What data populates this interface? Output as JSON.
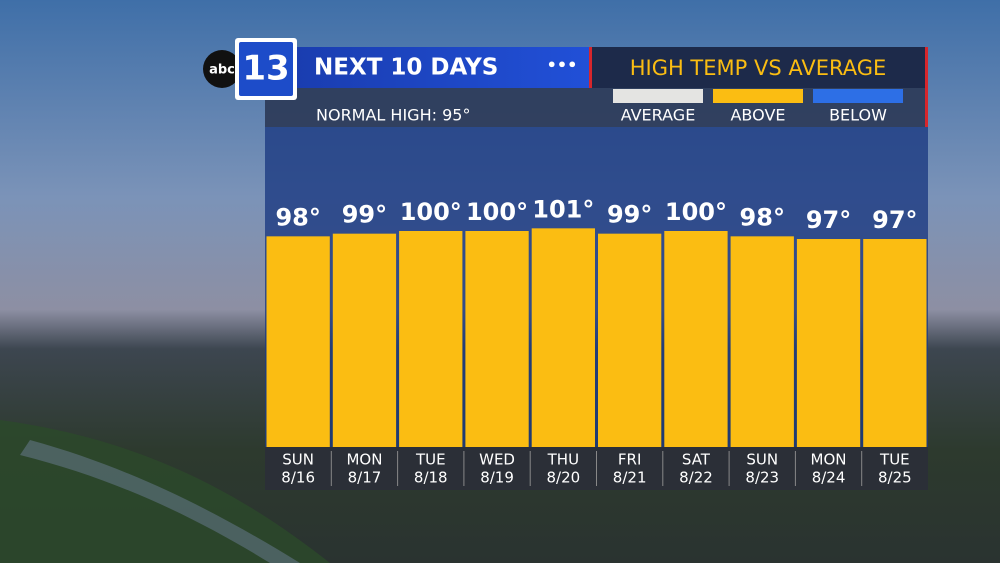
{
  "chart_data": {
    "type": "bar",
    "logo": {
      "network": "abc",
      "channel": "13"
    },
    "title": "NEXT 10 DAYS",
    "subtitle": "HIGH TEMP VS AVERAGE",
    "note": "NORMAL HIGH: 95°",
    "legend": [
      {
        "label": "AVERAGE",
        "color": "#e4e4e2"
      },
      {
        "label": "ABOVE",
        "color": "#fbbd12"
      },
      {
        "label": "BELOW",
        "color": "#2d6fe6"
      }
    ],
    "categories": [
      "SUN",
      "MON",
      "TUE",
      "WED",
      "THU",
      "FRI",
      "SAT",
      "SUN",
      "MON",
      "TUE"
    ],
    "dates": [
      "8/16",
      "8/17",
      "8/18",
      "8/19",
      "8/20",
      "8/21",
      "8/22",
      "8/23",
      "8/24",
      "8/25"
    ],
    "values": [
      98,
      99,
      100,
      100,
      101,
      99,
      100,
      98,
      97,
      97
    ],
    "value_labels": [
      "98°",
      "99°",
      "100°",
      "100°",
      "101°",
      "99°",
      "100°",
      "98°",
      "97°",
      "97°"
    ],
    "color": "#fbbd12",
    "ylim": [
      19,
      139
    ]
  }
}
